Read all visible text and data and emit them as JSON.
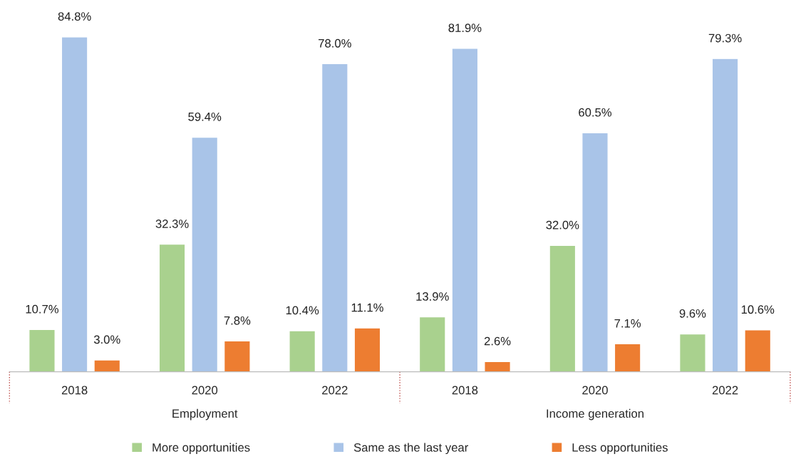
{
  "chart_data": {
    "type": "bar",
    "categories": [
      "2018",
      "2020",
      "2022",
      "2018",
      "2020",
      "2022"
    ],
    "series": [
      {
        "name": "More opportunities",
        "color": "#a9d18e",
        "values": [
          10.7,
          32.3,
          10.4,
          13.9,
          32.0,
          9.6
        ],
        "value_labels": [
          "10.7%",
          "32.3%",
          "10.4%",
          "13.9%",
          "32.0%",
          "9.6%"
        ]
      },
      {
        "name": "Same as the last year",
        "color": "#a9c4e8",
        "values": [
          84.8,
          59.4,
          78.0,
          81.9,
          60.5,
          79.3
        ],
        "value_labels": [
          "84.8%",
          "59.4%",
          "78.0%",
          "81.9%",
          "60.5%",
          "79.3%"
        ]
      },
      {
        "name": "Less opportunities",
        "color": "#ed7d31",
        "values": [
          3.0,
          7.8,
          11.1,
          2.6,
          7.1,
          10.6
        ],
        "value_labels": [
          "3.0%",
          "7.8%",
          "11.1%",
          "2.6%",
          "7.1%",
          "10.6%"
        ]
      }
    ],
    "annotations": [
      "Employment",
      "Income generation"
    ],
    "legend": "bottom",
    "grid": false
  }
}
